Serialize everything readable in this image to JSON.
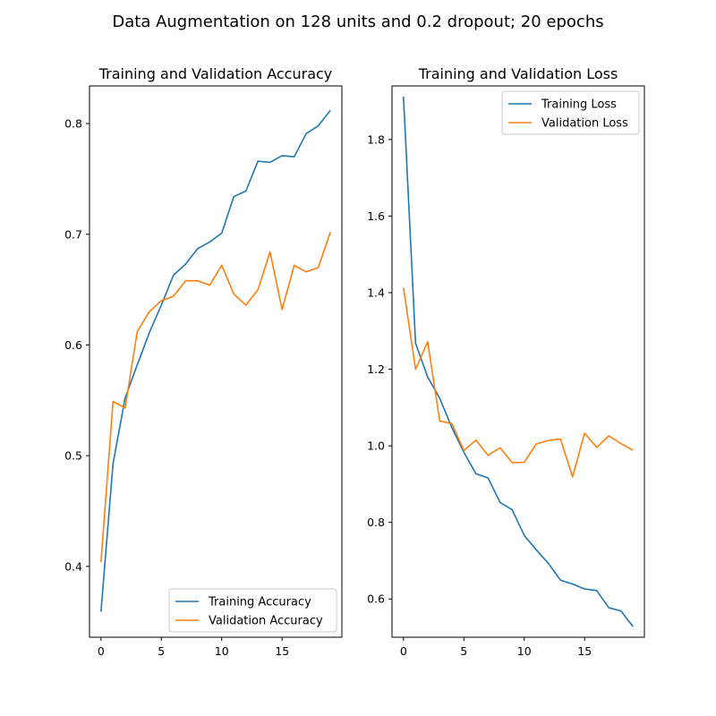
{
  "figure": {
    "suptitle": "Data Augmentation on 128 units and 0.2 dropout; 20 epochs",
    "colors": {
      "blue": "#1f77b4",
      "orange": "#ff7f0e"
    }
  },
  "chart_data": [
    {
      "type": "line",
      "title": "Training and Validation Accuracy",
      "xlabel": "",
      "ylabel": "",
      "xlim": [
        -0.95,
        19.95
      ],
      "ylim": [
        0.336,
        0.834
      ],
      "xticks": [
        0,
        5,
        10,
        15
      ],
      "yticks": [
        0.4,
        0.5,
        0.6,
        0.7,
        0.8
      ],
      "legend_position": "lower right",
      "x": [
        0,
        1,
        2,
        3,
        4,
        5,
        6,
        7,
        8,
        9,
        10,
        11,
        12,
        13,
        14,
        15,
        16,
        17,
        18,
        19
      ],
      "series": [
        {
          "name": "Training Accuracy",
          "color": "#1f77b4",
          "values": [
            0.359,
            0.493,
            0.552,
            0.582,
            0.611,
            0.636,
            0.663,
            0.673,
            0.687,
            0.693,
            0.701,
            0.734,
            0.739,
            0.766,
            0.765,
            0.771,
            0.77,
            0.791,
            0.798,
            0.812
          ]
        },
        {
          "name": "Validation Accuracy",
          "color": "#ff7f0e",
          "values": [
            0.404,
            0.549,
            0.543,
            0.612,
            0.63,
            0.64,
            0.644,
            0.658,
            0.658,
            0.654,
            0.672,
            0.646,
            0.636,
            0.65,
            0.684,
            0.632,
            0.672,
            0.666,
            0.67,
            0.702
          ]
        }
      ]
    },
    {
      "type": "line",
      "title": "Training and Validation Loss",
      "xlabel": "",
      "ylabel": "",
      "xlim": [
        -0.95,
        19.95
      ],
      "ylim": [
        0.5,
        1.94
      ],
      "xticks": [
        0,
        5,
        10,
        15
      ],
      "yticks": [
        0.6,
        0.8,
        1.0,
        1.2,
        1.4,
        1.6,
        1.8
      ],
      "legend_position": "upper right",
      "x": [
        0,
        1,
        2,
        3,
        4,
        5,
        6,
        7,
        8,
        9,
        10,
        11,
        12,
        13,
        14,
        15,
        16,
        17,
        18,
        19
      ],
      "series": [
        {
          "name": "Training Loss",
          "color": "#1f77b4",
          "values": [
            1.912,
            1.268,
            1.18,
            1.124,
            1.048,
            0.983,
            0.927,
            0.916,
            0.852,
            0.833,
            0.766,
            0.728,
            0.693,
            0.649,
            0.639,
            0.626,
            0.622,
            0.577,
            0.569,
            0.528
          ]
        },
        {
          "name": "Validation Loss",
          "color": "#ff7f0e",
          "values": [
            1.413,
            1.2,
            1.272,
            1.065,
            1.058,
            0.988,
            1.015,
            0.975,
            0.995,
            0.956,
            0.957,
            1.005,
            1.014,
            1.018,
            0.919,
            1.033,
            0.996,
            1.026,
            1.006,
            0.989
          ]
        }
      ]
    }
  ]
}
